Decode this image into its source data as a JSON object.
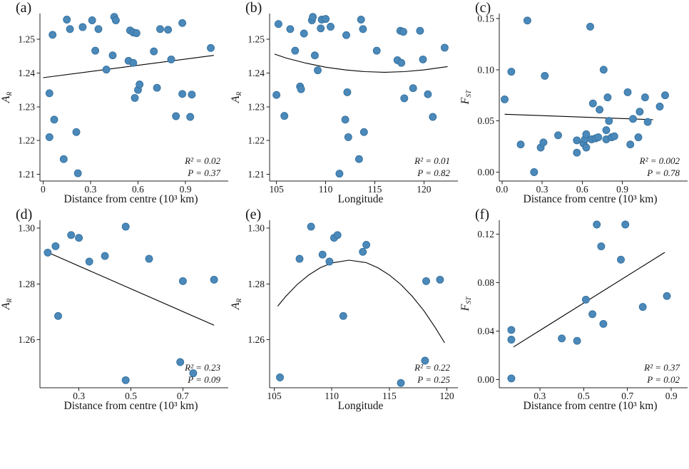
{
  "figure": {
    "background": "#ffffff",
    "point_color": "#4a89ba",
    "point_stroke": "#37719e",
    "fit_line_color": "#000000",
    "axis_color": "#222222",
    "text_color": "#161616"
  },
  "chart_data": [
    {
      "id": "a",
      "tag": "(a)",
      "type": "scatter",
      "xlabel": "Distance from centre (10³ km)",
      "ylabel_main": "A",
      "ylabel_sub": "R",
      "xlim": [
        -0.02,
        1.13
      ],
      "ylim": [
        1.208,
        1.2576
      ],
      "x_ticks": [
        0,
        0.3,
        0.6,
        0.9
      ],
      "x_tick_labels": [
        "0",
        "0.3",
        "0.6",
        "0.9"
      ],
      "y_ticks": [
        1.21,
        1.22,
        1.23,
        1.24,
        1.25
      ],
      "y_tick_labels": [
        "1.21",
        "1.22",
        "1.23",
        "1.24",
        "1.25"
      ],
      "r2_label": "R² = 0.02",
      "p_label": "P = 0.37",
      "fit": [
        [
          0.0,
          1.2386
        ],
        [
          1.08,
          1.2452
        ]
      ],
      "points": [
        [
          0.04,
          1.234
        ],
        [
          0.04,
          1.221
        ],
        [
          0.06,
          1.2513
        ],
        [
          0.07,
          1.2262
        ],
        [
          0.13,
          1.2145
        ],
        [
          0.15,
          1.2558
        ],
        [
          0.17,
          1.253
        ],
        [
          0.21,
          1.2225
        ],
        [
          0.22,
          1.2103
        ],
        [
          0.25,
          1.2536
        ],
        [
          0.31,
          1.2556
        ],
        [
          0.33,
          1.2466
        ],
        [
          0.35,
          1.253
        ],
        [
          0.4,
          1.241
        ],
        [
          0.44,
          1.2452
        ],
        [
          0.45,
          1.2566
        ],
        [
          0.46,
          1.2556
        ],
        [
          0.54,
          1.2436
        ],
        [
          0.55,
          1.2526
        ],
        [
          0.57,
          1.252
        ],
        [
          0.57,
          1.243
        ],
        [
          0.58,
          1.2326
        ],
        [
          0.59,
          1.2518
        ],
        [
          0.6,
          1.235
        ],
        [
          0.61,
          1.2366
        ],
        [
          0.7,
          1.2464
        ],
        [
          0.72,
          1.2356
        ],
        [
          0.74,
          1.253
        ],
        [
          0.79,
          1.2528
        ],
        [
          0.81,
          1.244
        ],
        [
          0.84,
          1.2272
        ],
        [
          0.88,
          1.2338
        ],
        [
          0.88,
          1.2548
        ],
        [
          0.93,
          1.227
        ],
        [
          0.94,
          1.2336
        ],
        [
          1.06,
          1.2474
        ]
      ]
    },
    {
      "id": "b",
      "tag": "(b)",
      "type": "scatter",
      "xlabel": "Longitude",
      "ylabel_main": "A",
      "ylabel_sub": "R",
      "xlim": [
        104.3,
        122.8
      ],
      "ylim": [
        1.208,
        1.2576
      ],
      "x_ticks": [
        105,
        110,
        115,
        120
      ],
      "x_tick_labels": [
        "105",
        "110",
        "115",
        "120"
      ],
      "y_ticks": [
        1.21,
        1.22,
        1.23,
        1.24,
        1.25
      ],
      "y_tick_labels": [
        "1.21",
        "1.22",
        "1.23",
        "1.24",
        "1.25"
      ],
      "r2_label": "R² = 0.01",
      "p_label": "P = 0.82",
      "fit": [
        [
          104.8,
          1.2456
        ],
        [
          106,
          1.2444
        ],
        [
          108,
          1.2429
        ],
        [
          110,
          1.2417
        ],
        [
          112,
          1.2409
        ],
        [
          114,
          1.2404
        ],
        [
          116,
          1.2402
        ],
        [
          118,
          1.2404
        ],
        [
          120,
          1.2409
        ],
        [
          122.4,
          1.2419
        ]
      ],
      "points": [
        [
          105.2,
          1.2545
        ],
        [
          105.0,
          1.2335
        ],
        [
          106.4,
          1.253
        ],
        [
          105.8,
          1.2273
        ],
        [
          106.9,
          1.2466
        ],
        [
          107.4,
          1.236
        ],
        [
          107.5,
          1.2352
        ],
        [
          107.8,
          1.2517
        ],
        [
          108.6,
          1.2556
        ],
        [
          108.7,
          1.2566
        ],
        [
          108.9,
          1.2452
        ],
        [
          109.2,
          1.2408
        ],
        [
          109.5,
          1.2532
        ],
        [
          109.6,
          1.2558
        ],
        [
          110.0,
          1.256
        ],
        [
          110.5,
          1.2537
        ],
        [
          111.4,
          1.2102
        ],
        [
          112.0,
          1.2262
        ],
        [
          112.1,
          1.2512
        ],
        [
          112.2,
          1.2343
        ],
        [
          112.3,
          1.221
        ],
        [
          113.4,
          1.2145
        ],
        [
          113.6,
          1.2558
        ],
        [
          113.8,
          1.253
        ],
        [
          113.9,
          1.2225
        ],
        [
          115.2,
          1.2466
        ],
        [
          117.3,
          1.2438
        ],
        [
          117.6,
          1.2525
        ],
        [
          117.7,
          1.243
        ],
        [
          117.9,
          1.2522
        ],
        [
          118.0,
          1.2325
        ],
        [
          118.9,
          1.2355
        ],
        [
          119.6,
          1.2525
        ],
        [
          119.9,
          1.244
        ],
        [
          120.4,
          1.2337
        ],
        [
          120.9,
          1.227
        ],
        [
          122.1,
          1.2475
        ]
      ]
    },
    {
      "id": "c",
      "tag": "(c)",
      "type": "scatter",
      "xlabel": "Distance from centre (10³ km)",
      "ylabel_main": "F",
      "ylabel_sub": "ST",
      "xlim": [
        -0.02,
        1.34
      ],
      "ylim": [
        -0.0087,
        0.1548
      ],
      "x_ticks": [
        0,
        0.3,
        0.6,
        0.9
      ],
      "x_tick_labels": [
        "0.0",
        "0.3",
        "0.6",
        "0.9"
      ],
      "y_ticks": [
        0.0,
        0.05,
        0.1,
        0.15
      ],
      "y_tick_labels": [
        "0.00",
        "0.05",
        "0.10",
        "0.15"
      ],
      "r2_label": "R² = 0.002",
      "p_label": "P = 0.78",
      "fit": [
        [
          0.02,
          0.0565
        ],
        [
          1.13,
          0.0512
        ]
      ],
      "points": [
        [
          0.02,
          0.071
        ],
        [
          0.07,
          0.098
        ],
        [
          0.14,
          0.027
        ],
        [
          0.19,
          0.148
        ],
        [
          0.24,
          0.0
        ],
        [
          0.29,
          0.024
        ],
        [
          0.31,
          0.029
        ],
        [
          0.32,
          0.094
        ],
        [
          0.42,
          0.036
        ],
        [
          0.56,
          0.031
        ],
        [
          0.56,
          0.019
        ],
        [
          0.61,
          0.028
        ],
        [
          0.62,
          0.032
        ],
        [
          0.63,
          0.037
        ],
        [
          0.63,
          0.024
        ],
        [
          0.66,
          0.142
        ],
        [
          0.67,
          0.032
        ],
        [
          0.68,
          0.067
        ],
        [
          0.7,
          0.033
        ],
        [
          0.72,
          0.034
        ],
        [
          0.73,
          0.061
        ],
        [
          0.76,
          0.1
        ],
        [
          0.78,
          0.041
        ],
        [
          0.78,
          0.032
        ],
        [
          0.79,
          0.073
        ],
        [
          0.8,
          0.05
        ],
        [
          0.82,
          0.034
        ],
        [
          0.84,
          0.035
        ],
        [
          0.94,
          0.078
        ],
        [
          0.96,
          0.027
        ],
        [
          0.98,
          0.052
        ],
        [
          1.02,
          0.034
        ],
        [
          1.03,
          0.059
        ],
        [
          1.07,
          0.073
        ],
        [
          1.09,
          0.049
        ],
        [
          1.18,
          0.064
        ],
        [
          1.22,
          0.075
        ]
      ]
    },
    {
      "id": "d",
      "tag": "(d)",
      "type": "scatter",
      "xlabel": "Distance from centre (10³ km)",
      "ylabel_main": "A",
      "ylabel_sub": "R",
      "xlim": [
        0.15,
        0.85
      ],
      "ylim": [
        1.2428,
        1.3028
      ],
      "x_ticks": [
        0.3,
        0.5,
        0.7
      ],
      "x_tick_labels": [
        "0.3",
        "0.5",
        "0.7"
      ],
      "y_ticks": [
        1.26,
        1.28,
        1.3
      ],
      "y_tick_labels": [
        "1.26",
        "1.28",
        "1.30"
      ],
      "r2_label": "R² = 0.23",
      "p_label": "P = 0.09",
      "fit": [
        [
          0.175,
          1.2915
        ],
        [
          0.82,
          1.2652
        ]
      ],
      "points": [
        [
          0.18,
          1.2912
        ],
        [
          0.21,
          1.2935
        ],
        [
          0.22,
          1.2685
        ],
        [
          0.27,
          1.2975
        ],
        [
          0.3,
          1.2965
        ],
        [
          0.34,
          1.288
        ],
        [
          0.4,
          1.29
        ],
        [
          0.48,
          1.3005
        ],
        [
          0.48,
          1.2455
        ],
        [
          0.57,
          1.289
        ],
        [
          0.69,
          1.252
        ],
        [
          0.7,
          1.281
        ],
        [
          0.74,
          1.248
        ],
        [
          0.82,
          1.2815
        ]
      ]
    },
    {
      "id": "e",
      "tag": "(e)",
      "type": "scatter",
      "xlabel": "Longitude",
      "ylabel_main": "A",
      "ylabel_sub": "R",
      "xlim": [
        104.6,
        120.4
      ],
      "ylim": [
        1.2428,
        1.3028
      ],
      "x_ticks": [
        105,
        110,
        115,
        120
      ],
      "x_tick_labels": [
        "105",
        "110",
        "115",
        "120"
      ],
      "y_ticks": [
        1.26,
        1.28,
        1.3
      ],
      "y_tick_labels": [
        "1.26",
        "1.28",
        "1.30"
      ],
      "r2_label": "R² = 0.22",
      "p_label": "P = 0.25",
      "fit": [
        [
          105.3,
          1.272
        ],
        [
          106,
          1.2755
        ],
        [
          107,
          1.2798
        ],
        [
          108,
          1.2832
        ],
        [
          109,
          1.2858
        ],
        [
          110,
          1.2875
        ],
        [
          111.5,
          1.2885
        ],
        [
          113,
          1.2876
        ],
        [
          114,
          1.2858
        ],
        [
          115,
          1.2832
        ],
        [
          116,
          1.2798
        ],
        [
          117,
          1.2755
        ],
        [
          118,
          1.2704
        ],
        [
          119,
          1.2643
        ],
        [
          119.8,
          1.2589
        ]
      ],
      "points": [
        [
          105.5,
          1.2465
        ],
        [
          107.2,
          1.289
        ],
        [
          108.2,
          1.3005
        ],
        [
          109.2,
          1.2905
        ],
        [
          109.8,
          1.288
        ],
        [
          110.2,
          1.2965
        ],
        [
          110.5,
          1.2975
        ],
        [
          111.0,
          1.2685
        ],
        [
          112.7,
          1.2915
        ],
        [
          113.0,
          1.294
        ],
        [
          116.0,
          1.2445
        ],
        [
          118.1,
          1.2525
        ],
        [
          118.2,
          1.281
        ],
        [
          119.4,
          1.2815
        ]
      ]
    },
    {
      "id": "f",
      "tag": "(f)",
      "type": "scatter",
      "xlabel": "Distance from centre (10³ km)",
      "ylabel_main": "F",
      "ylabel_sub": "ST",
      "xlim": [
        0.115,
        0.945
      ],
      "ylim": [
        -0.0067,
        0.1315
      ],
      "x_ticks": [
        0.3,
        0.5,
        0.7,
        0.9
      ],
      "x_tick_labels": [
        "0.3",
        "0.5",
        "0.7",
        "0.9"
      ],
      "y_ticks": [
        0.0,
        0.04,
        0.08,
        0.12
      ],
      "y_tick_labels": [
        "0.00",
        "0.04",
        "0.08",
        "0.12"
      ],
      "r2_label": "R² = 0.37",
      "p_label": "P = 0.02",
      "fit": [
        [
          0.18,
          0.027
        ],
        [
          0.87,
          0.105
        ]
      ],
      "points": [
        [
          0.17,
          0.001
        ],
        [
          0.17,
          0.041
        ],
        [
          0.17,
          0.033
        ],
        [
          0.4,
          0.034
        ],
        [
          0.47,
          0.032
        ],
        [
          0.51,
          0.066
        ],
        [
          0.54,
          0.054
        ],
        [
          0.56,
          0.128
        ],
        [
          0.58,
          0.11
        ],
        [
          0.59,
          0.046
        ],
        [
          0.67,
          0.099
        ],
        [
          0.69,
          0.128
        ],
        [
          0.77,
          0.06
        ],
        [
          0.88,
          0.069
        ]
      ]
    }
  ]
}
